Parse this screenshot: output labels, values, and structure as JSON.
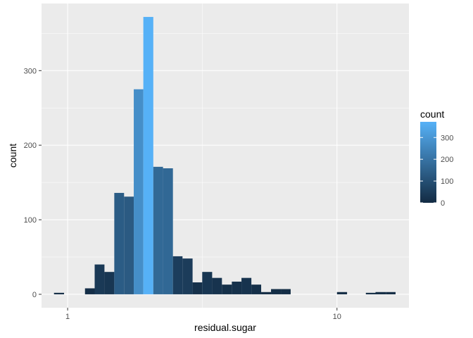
{
  "chart_data": {
    "type": "bar",
    "subtype": "histogram",
    "xlabel": "residual.sugar",
    "ylabel": "count",
    "x_scale": "log10",
    "x_ticks": [
      1,
      10
    ],
    "x_tick_labels": [
      "1",
      "10"
    ],
    "y_ticks": [
      0,
      100,
      200,
      300
    ],
    "y_tick_labels": [
      "0",
      "100",
      "200",
      "300"
    ],
    "xlim": [
      0.8,
      18.5
    ],
    "ylim": [
      -18,
      390
    ],
    "grid": true,
    "bins": [
      {
        "x0": 0.89,
        "x1": 0.97,
        "count": 2
      },
      {
        "x0": 1.16,
        "x1": 1.26,
        "count": 8
      },
      {
        "x0": 1.26,
        "x1": 1.37,
        "count": 40
      },
      {
        "x0": 1.37,
        "x1": 1.49,
        "count": 30
      },
      {
        "x0": 1.49,
        "x1": 1.62,
        "count": 136
      },
      {
        "x0": 1.62,
        "x1": 1.76,
        "count": 131
      },
      {
        "x0": 1.76,
        "x1": 1.91,
        "count": 275
      },
      {
        "x0": 1.91,
        "x1": 2.08,
        "count": 372
      },
      {
        "x0": 2.08,
        "x1": 2.26,
        "count": 171
      },
      {
        "x0": 2.26,
        "x1": 2.46,
        "count": 169
      },
      {
        "x0": 2.46,
        "x1": 2.67,
        "count": 51
      },
      {
        "x0": 2.67,
        "x1": 2.91,
        "count": 48
      },
      {
        "x0": 2.91,
        "x1": 3.16,
        "count": 16
      },
      {
        "x0": 3.16,
        "x1": 3.44,
        "count": 30
      },
      {
        "x0": 3.44,
        "x1": 3.74,
        "count": 22
      },
      {
        "x0": 3.74,
        "x1": 4.07,
        "count": 13
      },
      {
        "x0": 4.07,
        "x1": 4.42,
        "count": 17
      },
      {
        "x0": 4.42,
        "x1": 4.81,
        "count": 22
      },
      {
        "x0": 4.81,
        "x1": 5.23,
        "count": 13
      },
      {
        "x0": 5.23,
        "x1": 5.69,
        "count": 3
      },
      {
        "x0": 5.69,
        "x1": 6.19,
        "count": 7
      },
      {
        "x0": 6.19,
        "x1": 6.73,
        "count": 7
      },
      {
        "x0": 10.0,
        "x1": 10.9,
        "count": 3
      },
      {
        "x0": 12.8,
        "x1": 13.9,
        "count": 2
      },
      {
        "x0": 13.9,
        "x1": 15.2,
        "count": 3
      },
      {
        "x0": 15.2,
        "x1": 16.5,
        "count": 3
      }
    ],
    "legend": {
      "title": "count",
      "position": "right",
      "min": 0,
      "max": 372,
      "ticks": [
        0,
        100,
        200,
        300
      ],
      "tick_labels": [
        "0",
        "100",
        "200",
        "300"
      ],
      "color_low": "#132b43",
      "color_high": "#56b1f7"
    },
    "panel_color": "#ebebeb",
    "grid_color": "#ffffff"
  }
}
